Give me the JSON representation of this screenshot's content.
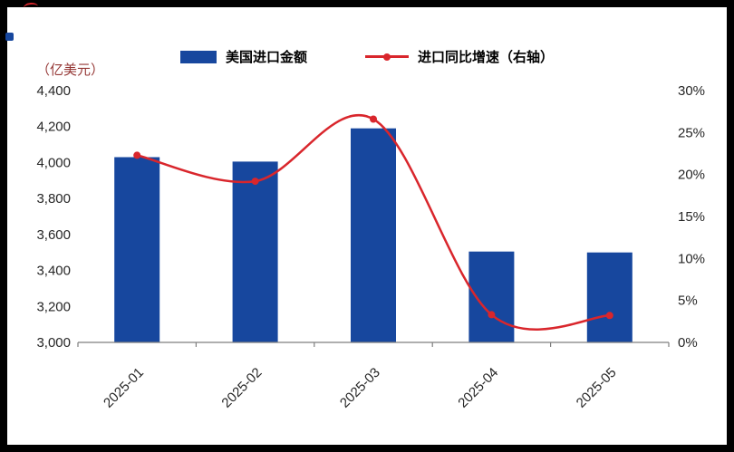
{
  "page": {
    "frame_color": "#000000",
    "canvas_color": "#ffffff"
  },
  "chart_data": {
    "type": "bar+line",
    "title": "",
    "categories": [
      "2025-01",
      "2025-02",
      "2025-03",
      "2025-04",
      "2025-05"
    ],
    "series": [
      {
        "name": "美国进口金额",
        "type": "bar",
        "axis": "left",
        "color": "#17479E",
        "values": [
          4030,
          4005,
          4190,
          3505,
          3500
        ]
      },
      {
        "name": "进口同比增速（右轴）",
        "type": "line",
        "axis": "right",
        "color": "#D9262C",
        "values": [
          22.3,
          19.2,
          26.6,
          3.3,
          3.2
        ]
      }
    ],
    "left_axis": {
      "label": "（亿美元）",
      "label_color": "#953735",
      "min": 3000,
      "max": 4400,
      "step": 200,
      "ticks_top_down": [
        "4,400",
        "4,200",
        "4,000",
        "3,800",
        "3,600",
        "3,400",
        "3,200",
        "3,000"
      ]
    },
    "right_axis": {
      "min": 0,
      "max": 30,
      "step": 5,
      "unit": "%",
      "ticks_top_down": [
        "30%",
        "25%",
        "20%",
        "15%",
        "10%",
        "5%",
        "0%"
      ]
    },
    "grid": false,
    "legend_position": "top"
  }
}
